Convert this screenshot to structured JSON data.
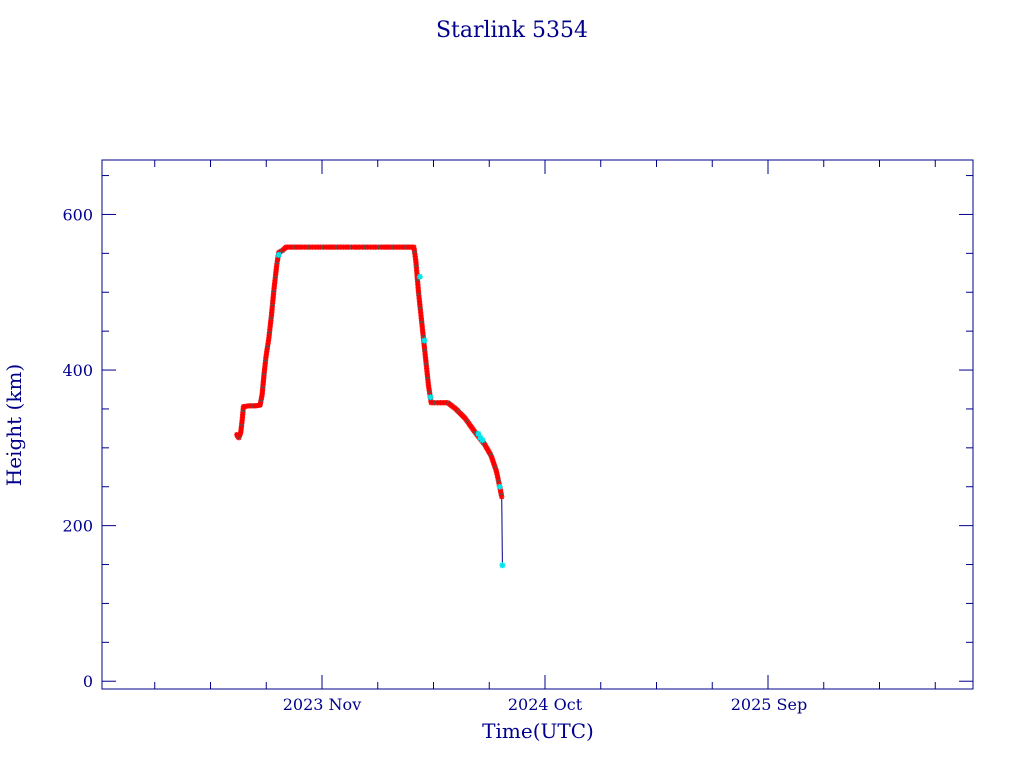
{
  "chart_data": {
    "type": "scatter",
    "title": "Starlink 5354",
    "xlabel": "Time(UTC)",
    "ylabel": "Height (km)",
    "ylim": [
      -10,
      670
    ],
    "x_ticks": [
      "2023 Nov",
      "2024 Oct",
      "2025 Sep"
    ],
    "y_ticks": [
      0,
      200,
      400,
      600
    ],
    "colors": {
      "axis": "#00008b",
      "points": "#ff0000",
      "highlight_points": "#00e5ee",
      "dark_points": "#555555",
      "line": "#00008b"
    },
    "series": [
      {
        "values": [
          [
            "2023-06-26",
            317
          ],
          [
            "2023-06-29",
            313
          ],
          [
            "2023-07-02",
            320
          ],
          [
            "2023-07-04",
            335
          ],
          [
            "2023-07-06",
            353
          ],
          [
            "2023-07-15",
            354
          ],
          [
            "2023-07-25",
            354
          ],
          [
            "2023-07-31",
            355
          ],
          [
            "2023-08-03",
            368
          ],
          [
            "2023-08-06",
            395
          ],
          [
            "2023-08-09",
            418
          ],
          [
            "2023-08-13",
            440
          ],
          [
            "2023-08-17",
            470
          ],
          [
            "2023-08-21",
            505
          ],
          [
            "2023-08-25",
            535
          ],
          [
            "2023-08-28",
            551
          ],
          [
            "2023-09-03",
            554
          ],
          [
            "2023-09-08",
            558
          ],
          [
            "2023-10-01",
            558
          ],
          [
            "2023-11-01",
            558
          ],
          [
            "2023-12-01",
            558
          ],
          [
            "2024-01-01",
            558
          ],
          [
            "2024-02-01",
            558
          ],
          [
            "2024-03-01",
            558
          ],
          [
            "2024-03-18",
            558
          ],
          [
            "2024-03-21",
            540
          ],
          [
            "2024-03-25",
            500
          ],
          [
            "2024-03-30",
            460
          ],
          [
            "2024-04-04",
            420
          ],
          [
            "2024-04-09",
            380
          ],
          [
            "2024-04-13",
            358
          ],
          [
            "2024-04-25",
            358
          ],
          [
            "2024-05-08",
            358
          ],
          [
            "2024-05-20",
            350
          ],
          [
            "2024-06-03",
            338
          ],
          [
            "2024-06-18",
            320
          ],
          [
            "2024-07-02",
            305
          ],
          [
            "2024-07-12",
            290
          ],
          [
            "2024-07-20",
            270
          ],
          [
            "2024-07-25",
            250
          ],
          [
            "2024-07-28",
            237
          ]
        ]
      }
    ],
    "highlights": [
      [
        "2023-08-28",
        548
      ],
      [
        "2024-03-27",
        520
      ],
      [
        "2024-04-03",
        438
      ],
      [
        "2024-04-12",
        365
      ],
      [
        "2024-06-23",
        318
      ],
      [
        "2024-06-26",
        313
      ],
      [
        "2024-06-29",
        310
      ],
      [
        "2024-07-25",
        250
      ],
      [
        "2024-07-29",
        149
      ]
    ],
    "reentry_line": [
      [
        "2024-07-28",
        237
      ],
      [
        "2024-07-29",
        149
      ]
    ]
  }
}
